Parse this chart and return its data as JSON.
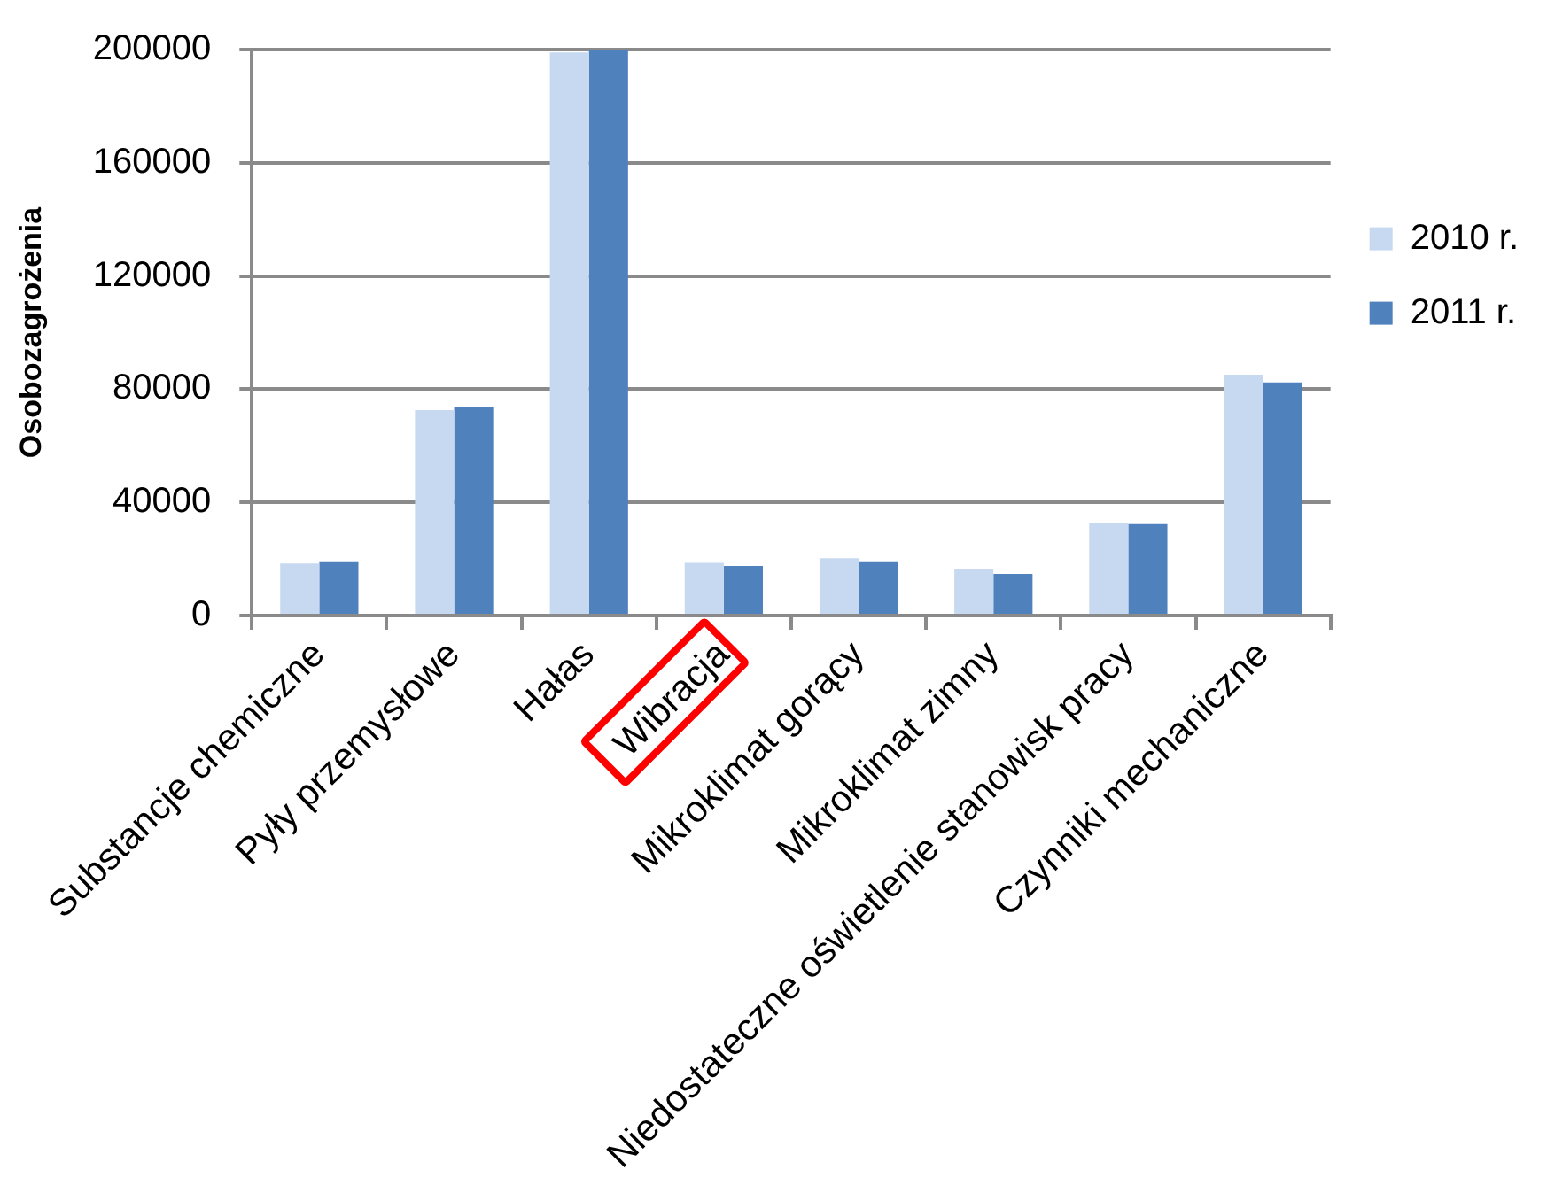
{
  "chart_data": {
    "type": "bar",
    "ylabel": "Osobozagrożenia",
    "categories": [
      "Substancje chemiczne",
      "Pyły przemysłowe",
      "Hałas",
      "Wibracja",
      "Mikroklimat gorący",
      "Mikroklimat zimny",
      "Niedostateczne oświetlenie stanowisk pracy",
      "Czynniki mechaniczne"
    ],
    "series": [
      {
        "name": "2010 r.",
        "color": "#c6d9f1",
        "values": [
          18400,
          72600,
          199000,
          18600,
          20300,
          16600,
          32600,
          85100
        ]
      },
      {
        "name": "2011 r.",
        "color": "#4f81bd",
        "values": [
          19200,
          73900,
          200000,
          17500,
          19200,
          14700,
          32300,
          82400
        ]
      }
    ],
    "ylim": [
      0,
      200000
    ],
    "yticks": [
      0,
      40000,
      80000,
      120000,
      160000,
      200000
    ],
    "grid": "y",
    "legend": "right"
  }
}
